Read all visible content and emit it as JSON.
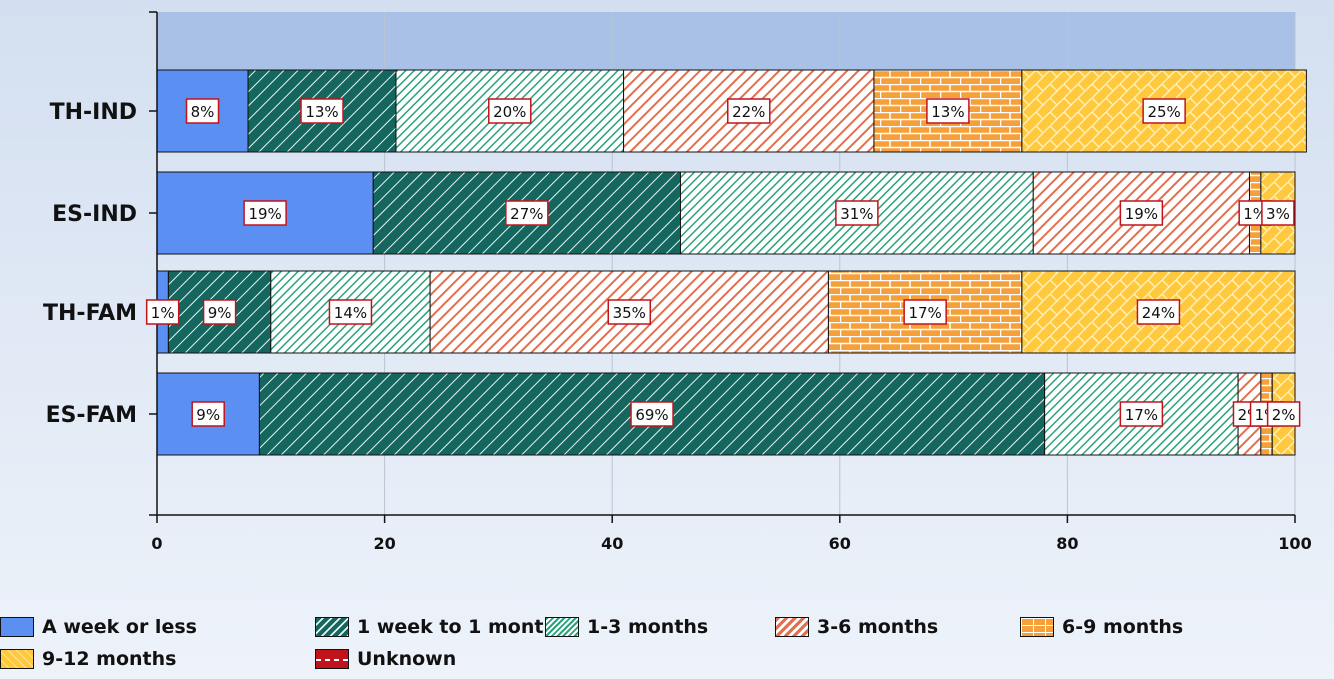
{
  "chart_data": {
    "type": "bar",
    "orientation": "horizontal",
    "stacked": true,
    "categories": [
      "TH-IND",
      "ES-IND",
      "TH-FAM",
      "ES-FAM"
    ],
    "xlim": [
      0,
      100
    ],
    "xticks": [
      0,
      20,
      40,
      60,
      80,
      100
    ],
    "grid": true,
    "legend_position": "bottom",
    "series": [
      {
        "name": "A week or less",
        "color": "#5b8ff2",
        "pattern": "solid",
        "values": [
          8,
          19,
          1,
          9
        ],
        "labels": [
          "8%",
          "19%",
          "1%",
          "9%"
        ]
      },
      {
        "name": "1 week to 1 month",
        "color": "#15665e",
        "pattern": "hatch",
        "values": [
          13,
          27,
          9,
          69
        ],
        "labels": [
          "13%",
          "27%",
          "9%",
          "69%"
        ]
      },
      {
        "name": "1-3 months",
        "color": "#2aa37a",
        "pattern": "dense-hatch",
        "values": [
          20,
          31,
          14,
          17
        ],
        "labels": [
          "20%",
          "31%",
          "14%",
          "17%"
        ]
      },
      {
        "name": "3-6 months",
        "color": "#e8845c",
        "pattern": "hatch",
        "values": [
          22,
          19,
          35,
          2
        ],
        "labels": [
          "22%",
          "19%",
          "35%",
          "2%"
        ]
      },
      {
        "name": "6-9 months",
        "color": "#f5a03a",
        "pattern": "brick",
        "values": [
          13,
          1,
          17,
          1
        ],
        "labels": [
          "13%",
          "1%",
          "17%",
          "1%"
        ]
      },
      {
        "name": "9-12 months",
        "color": "#ffc83d",
        "pattern": "crosshatch",
        "values": [
          25,
          3,
          24,
          2
        ],
        "labels": [
          "25%",
          "3%",
          "24%",
          "2%"
        ]
      },
      {
        "name": "Unknown",
        "color": "#c0141c",
        "pattern": "dash",
        "values": [
          0,
          0,
          0,
          0
        ],
        "labels": [
          "",
          "",
          "",
          ""
        ]
      }
    ]
  },
  "legend": {
    "items": [
      "A week or less",
      "1-3 months",
      "6-9 months",
      "9-12 months",
      "Unknown",
      "1 week to 1 month",
      "3-6 months"
    ]
  }
}
